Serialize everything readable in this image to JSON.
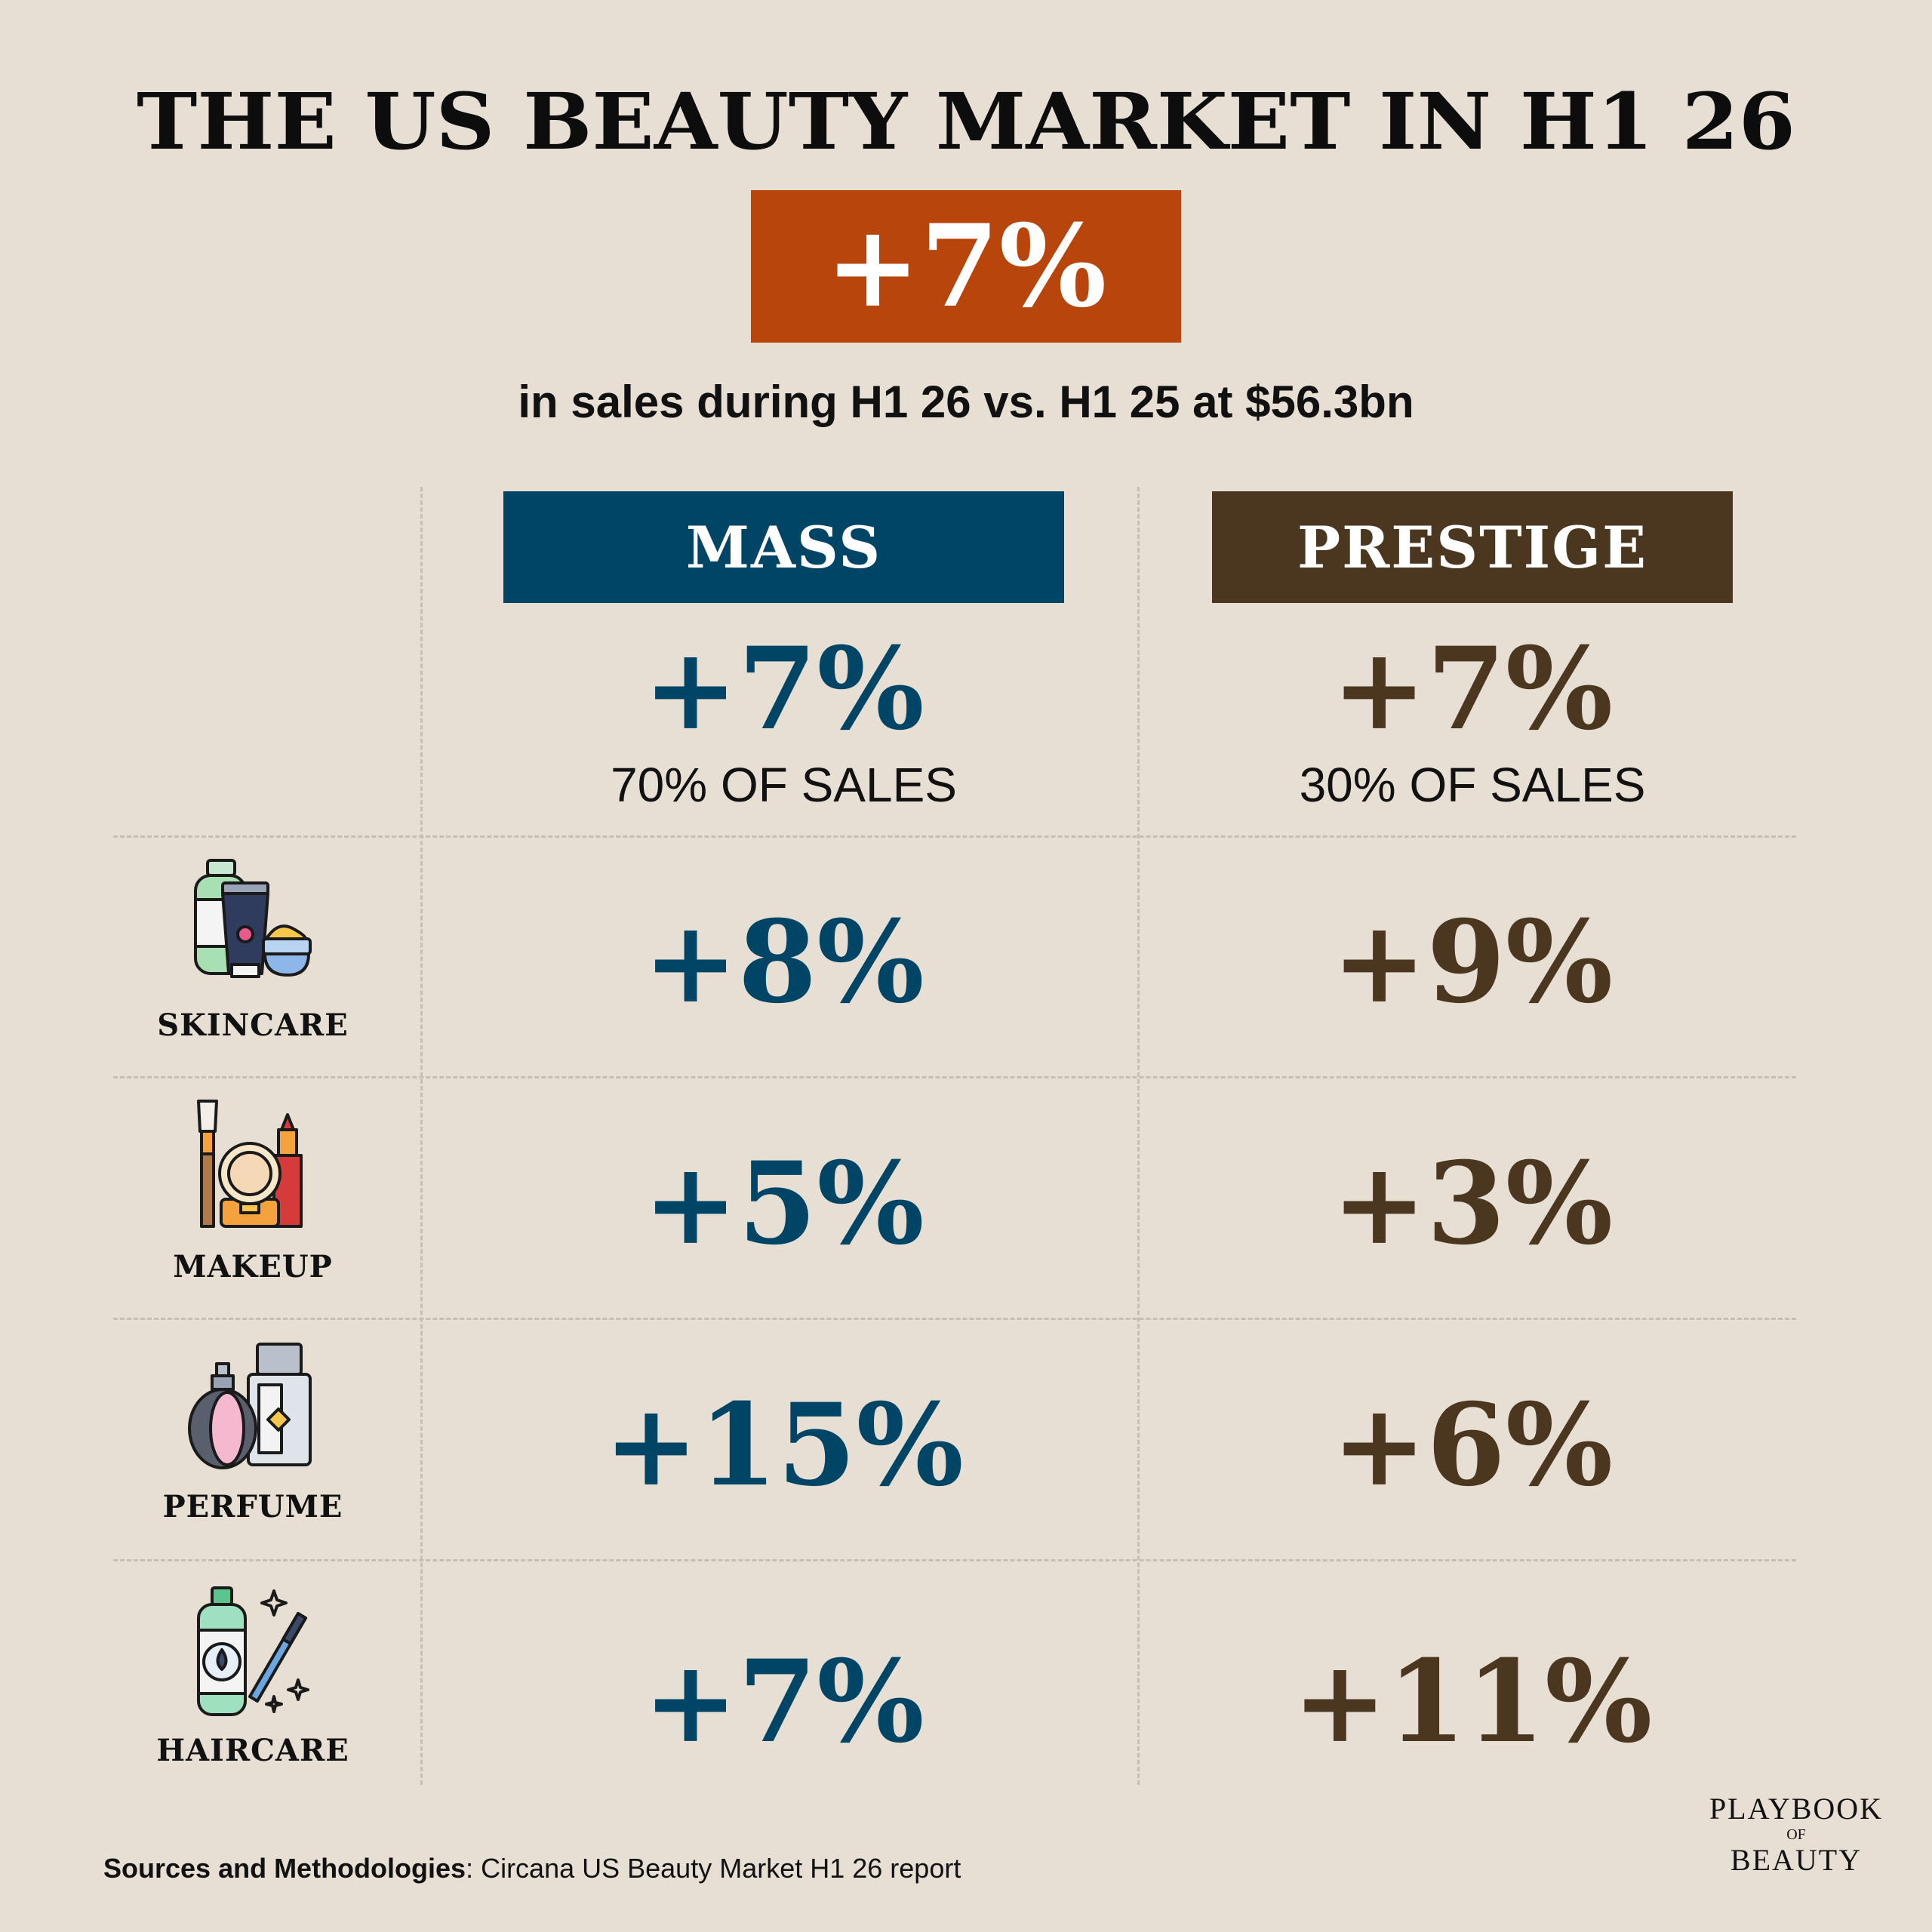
{
  "title": "THE US BEAUTY MARKET IN H1 26",
  "headline": {
    "value": "+7%",
    "caption": "in sales during H1 26 vs. H1 25 at $56.3bn"
  },
  "columns": {
    "mass": {
      "label": "MASS",
      "total": "+7%",
      "share": "70% OF SALES",
      "color": "#004566"
    },
    "prestige": {
      "label": "PRESTIGE",
      "total": "+7%",
      "share": "30% OF SALES",
      "color": "#4b3720"
    }
  },
  "categories": [
    {
      "label": "SKINCARE",
      "icon": "skincare-products-icon",
      "mass": "+8%",
      "prestige": "+9%"
    },
    {
      "label": "MAKEUP",
      "icon": "makeup-kit-icon",
      "mass": "+5%",
      "prestige": "+3%"
    },
    {
      "label": "PERFUME",
      "icon": "perfume-bottles-icon",
      "mass": "+15%",
      "prestige": "+6%"
    },
    {
      "label": "HAIRCARE",
      "icon": "haircare-shampoo-comb-icon",
      "mass": "+7%",
      "prestige": "+11%"
    }
  ],
  "footer": {
    "sources_label": "Sources and Methodologies",
    "sources_text": ": Circana US Beauty Market H1 26 report"
  },
  "logo": {
    "line1": "PLAYBOOK",
    "line2": "OF",
    "line3": "BEAUTY"
  },
  "colors": {
    "background": "#e7dfd3",
    "accent": "#b8460c",
    "mass": "#004566",
    "prestige": "#4b3720"
  }
}
